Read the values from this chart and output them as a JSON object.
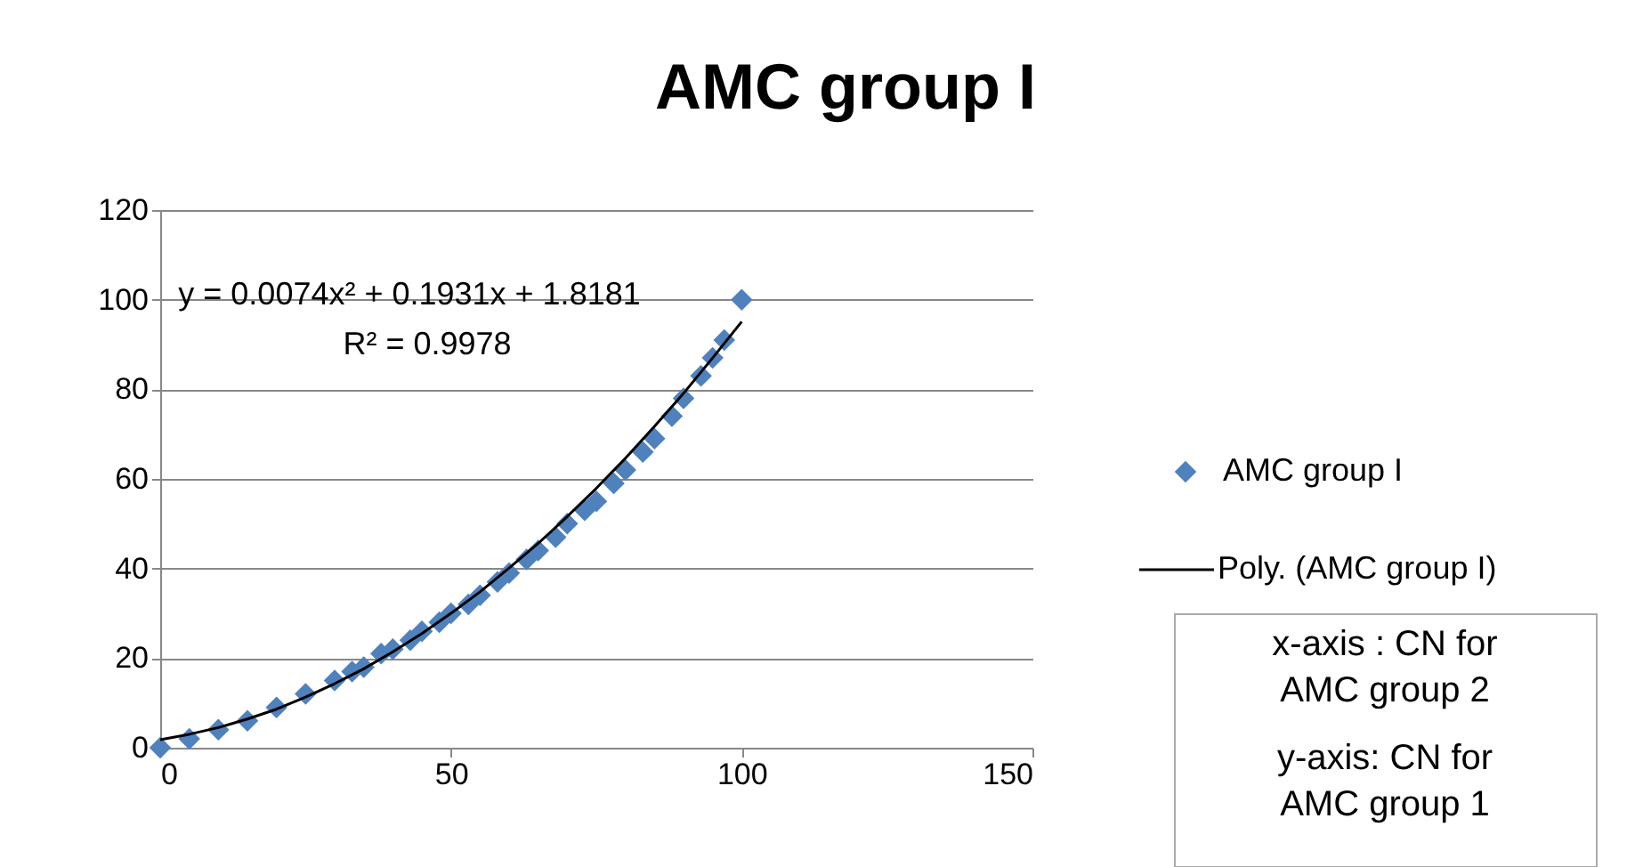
{
  "chart_data": {
    "type": "scatter",
    "title": "AMC group I",
    "series": [
      {
        "name": "AMC group I",
        "color": "#4f81bd",
        "marker": "diamond",
        "x": [
          0,
          5,
          10,
          15,
          20,
          25,
          30,
          33,
          35,
          38,
          40,
          43,
          45,
          48,
          50,
          53,
          55,
          58,
          60,
          63,
          65,
          68,
          70,
          73,
          75,
          78,
          80,
          83,
          85,
          88,
          90,
          93,
          95,
          97,
          100
        ],
        "values": [
          0,
          2,
          4,
          6,
          9,
          12,
          15,
          17,
          18,
          21,
          22,
          24,
          26,
          28,
          30,
          32,
          34,
          37,
          39,
          42,
          44,
          47,
          50,
          53,
          55,
          59,
          62,
          66,
          69,
          74,
          78,
          83,
          87,
          91,
          100
        ]
      },
      {
        "name": "Poly. (AMC group I)",
        "type": "line",
        "color": "#000000",
        "marker": "none",
        "line_style": "solid",
        "x": [
          0,
          5,
          10,
          15,
          20,
          25,
          30,
          35,
          40,
          45,
          50,
          55,
          60,
          65,
          70,
          75,
          80,
          85,
          90,
          95,
          100
        ],
        "values": [
          1.8,
          3.0,
          4.5,
          6.4,
          8.6,
          11.3,
          14.3,
          17.6,
          21.4,
          25.5,
          30.0,
          34.8,
          40.1,
          45.6,
          51.6,
          57.9,
          64.6,
          71.7,
          79.1,
          87.0,
          95.1
        ]
      }
    ],
    "xlim": [
      0,
      150
    ],
    "xticks": [
      0,
      50,
      100,
      150
    ],
    "ylim": [
      0,
      120
    ],
    "yticks": [
      0,
      20,
      40,
      60,
      80,
      100,
      120
    ],
    "grid": "y",
    "legend": "right",
    "annotations": [
      "y = 0.0074x² + 0.1931x + 1.8181",
      "R² = 0.9978",
      "x-axis : CN for AMC group 2",
      "y-axis: CN for AMC group 1"
    ]
  }
}
